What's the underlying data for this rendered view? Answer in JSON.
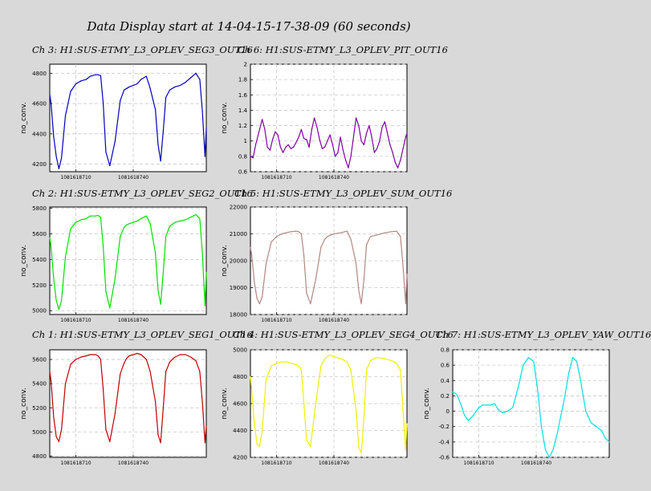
{
  "title": "Data Display start at 14-04-15-17-38-09 (60 seconds)",
  "chart_data": [
    {
      "type": "line",
      "title": "Ch 3: H1:SUS-ETMY_L3_OPLEV_SEG3_OUT16",
      "ylabel": "no_conv.",
      "color": "#0000c0",
      "ylim": [
        4150,
        4860
      ],
      "yticks": [
        4200,
        4400,
        4600,
        4800
      ],
      "yticklabels": [
        "4200",
        "4400",
        "4600",
        "4800"
      ],
      "xlim": [
        0,
        60
      ],
      "xticks": [
        10,
        32
      ],
      "xticklabels": [
        "1081618710",
        "1081618740"
      ],
      "x": [
        0,
        0.5,
        1.5,
        2.5,
        3.5,
        4.5,
        6,
        8,
        10,
        12,
        14,
        15.5,
        17.5,
        18.5,
        19.5,
        20.5,
        21.5,
        23,
        25,
        27,
        28.5,
        29.5,
        30.5,
        32,
        33.5,
        35,
        37,
        38.5,
        40.5,
        41.5,
        42.5,
        43.5,
        44.5,
        46,
        48,
        50,
        52,
        54,
        56,
        57.5,
        58.5,
        59.5,
        60
      ],
      "y": [
        4660,
        4600,
        4380,
        4250,
        4170,
        4240,
        4520,
        4680,
        4730,
        4750,
        4760,
        4780,
        4790,
        4790,
        4785,
        4600,
        4280,
        4190,
        4350,
        4620,
        4690,
        4700,
        4710,
        4720,
        4730,
        4760,
        4780,
        4700,
        4560,
        4330,
        4220,
        4420,
        4640,
        4690,
        4710,
        4720,
        4740,
        4770,
        4800,
        4760,
        4550,
        4250,
        4440
      ]
    },
    {
      "type": "line",
      "title": "Ch 6: H1:SUS-ETMY_L3_OPLEV_PIT_OUT16",
      "ylabel": "no_conv.",
      "color": "#8000a0",
      "ylim": [
        0.6,
        2.0
      ],
      "yticks": [
        0.6,
        0.8,
        1.0,
        1.2,
        1.4,
        1.6,
        1.8,
        2.0
      ],
      "yticklabels": [
        "0.6",
        "0.8",
        "1",
        "1.2",
        "1.4",
        "1.6",
        "1.8",
        "2"
      ],
      "xlim": [
        0,
        60
      ],
      "xticks": [
        10,
        32
      ],
      "xticklabels": [
        "1081618710",
        "1081618740"
      ],
      "x": [
        0,
        1,
        2,
        3.5,
        4.5,
        5.5,
        6.5,
        7.5,
        8.5,
        9.5,
        10.5,
        11.5,
        12.5,
        13.5,
        14.5,
        15.5,
        16.5,
        17.5,
        18.5,
        19.5,
        20.5,
        21.5,
        22.5,
        23.5,
        24.5,
        25.5,
        26.5,
        27.5,
        28.5,
        29.5,
        30.5,
        31.5,
        32.5,
        33.5,
        34.5,
        35.5,
        36.5,
        37.5,
        38.5,
        39.5,
        40.5,
        41.5,
        42.5,
        43.5,
        44.5,
        45.5,
        46.5,
        47.5,
        48.5,
        49.5,
        50.5,
        51.5,
        52.5,
        53.5,
        54.5,
        55.5,
        56.5,
        57.5,
        58.5,
        59.5,
        60
      ],
      "y": [
        0.8,
        0.78,
        0.95,
        1.15,
        1.28,
        1.15,
        0.92,
        0.88,
        1.02,
        1.12,
        1.08,
        0.92,
        0.85,
        0.92,
        0.95,
        0.9,
        0.92,
        0.98,
        1.05,
        1.15,
        1.03,
        1.02,
        0.92,
        1.15,
        1.3,
        1.18,
        1.02,
        0.9,
        0.92,
        1.0,
        1.08,
        0.95,
        0.8,
        0.85,
        1.05,
        0.88,
        0.75,
        0.65,
        0.8,
        1.05,
        1.3,
        1.2,
        1.0,
        0.95,
        1.1,
        1.2,
        1.05,
        0.85,
        0.9,
        1.0,
        1.18,
        1.25,
        1.1,
        0.95,
        0.85,
        0.72,
        0.65,
        0.75,
        0.9,
        1.05,
        1.1
      ]
    },
    {
      "type": "line",
      "title": "Ch 2: H1:SUS-ETMY_L3_OPLEV_SEG2_OUT16",
      "ylabel": "no_conv.",
      "color": "#00e000",
      "ylim": [
        4970,
        5810
      ],
      "yticks": [
        5000,
        5200,
        5400,
        5600,
        5800
      ],
      "yticklabels": [
        "5000",
        "5200",
        "5400",
        "5600",
        "5800"
      ],
      "xlim": [
        0,
        60
      ],
      "xticks": [
        10,
        32
      ],
      "xticklabels": [
        "1081618710",
        "1081618740"
      ],
      "x": [
        0,
        0.5,
        1.5,
        2.5,
        3.5,
        4.5,
        6,
        8,
        10,
        12,
        14,
        15.5,
        17.5,
        18.5,
        19.5,
        20.5,
        21.5,
        23,
        25,
        27,
        28.5,
        29.5,
        30.5,
        32,
        33.5,
        35,
        37,
        38.5,
        40.5,
        41.5,
        42.5,
        43.5,
        44.5,
        46,
        48,
        50,
        52,
        54,
        56,
        57.5,
        58.5,
        59.5,
        60
      ],
      "y": [
        5570,
        5500,
        5250,
        5080,
        5010,
        5080,
        5420,
        5640,
        5690,
        5710,
        5720,
        5740,
        5740,
        5745,
        5730,
        5500,
        5150,
        5020,
        5250,
        5580,
        5650,
        5670,
        5680,
        5690,
        5700,
        5720,
        5740,
        5680,
        5450,
        5160,
        5050,
        5300,
        5580,
        5660,
        5690,
        5700,
        5710,
        5730,
        5750,
        5720,
        5450,
        5040,
        5300
      ]
    },
    {
      "type": "line",
      "title": "Ch 5: H1:SUS-ETMY_L3_OPLEV_SUM_OUT16",
      "ylabel": "no_conv.",
      "color": "#b08880",
      "ylim": [
        18000,
        22000
      ],
      "yticks": [
        18000,
        19000,
        20000,
        21000,
        22000
      ],
      "yticklabels": [
        "18000",
        "19000",
        "20000",
        "21000",
        "22000"
      ],
      "xlim": [
        0,
        60
      ],
      "xticks": [
        10,
        32
      ],
      "xticklabels": [
        "1081618710",
        "1081618740"
      ],
      "x": [
        0,
        0.5,
        1.5,
        2.5,
        3.5,
        4.5,
        6,
        8,
        10,
        12,
        14,
        15.5,
        17.5,
        18.5,
        19.5,
        20.5,
        21.5,
        23,
        25,
        27,
        28.5,
        29.5,
        30.5,
        32,
        33.5,
        35,
        37,
        38.5,
        40.5,
        41.5,
        42.5,
        43.5,
        44.5,
        46,
        48,
        50,
        52,
        54,
        56,
        57.5,
        58.5,
        59.5,
        60
      ],
      "y": [
        20500,
        20200,
        19200,
        18600,
        18400,
        18650,
        19900,
        20700,
        20900,
        21000,
        21050,
        21080,
        21100,
        21080,
        21000,
        20200,
        18800,
        18400,
        19300,
        20500,
        20800,
        20900,
        20950,
        21000,
        21020,
        21050,
        21100,
        20800,
        19900,
        18900,
        18400,
        19300,
        20600,
        20900,
        20950,
        21000,
        21050,
        21080,
        21100,
        20900,
        19800,
        18400,
        19500
      ]
    },
    {
      "type": "line",
      "title": "Ch 1: H1:SUS-ETMY_L3_OPLEV_SEG1_OUT16",
      "ylabel": "no_conv.",
      "color": "#c00000",
      "ylim": [
        4790,
        5680
      ],
      "yticks": [
        4800,
        5000,
        5200,
        5400,
        5600
      ],
      "yticklabels": [
        "4800",
        "5000",
        "5200",
        "5400",
        "5600"
      ],
      "xlim": [
        0,
        60
      ],
      "xticks": [
        10,
        32
      ],
      "xticklabels": [
        "1081618710",
        "1081618740"
      ],
      "x": [
        0,
        0.5,
        1.5,
        2.5,
        3.5,
        4.5,
        6,
        8,
        10,
        12,
        14,
        15.5,
        17.5,
        18.5,
        19.5,
        20.5,
        21.5,
        23,
        25,
        27,
        28.5,
        29.5,
        30.5,
        32,
        33.5,
        35,
        37,
        38.5,
        40.5,
        41.5,
        42.5,
        43.5,
        44.5,
        46,
        48,
        50,
        52,
        54,
        56,
        57.5,
        58.5,
        59.5,
        60
      ],
      "y": [
        5500,
        5420,
        5120,
        4960,
        4920,
        5020,
        5400,
        5560,
        5600,
        5620,
        5630,
        5640,
        5640,
        5630,
        5600,
        5350,
        5020,
        4920,
        5150,
        5480,
        5570,
        5610,
        5630,
        5640,
        5650,
        5640,
        5600,
        5500,
        5250,
        4980,
        4910,
        5200,
        5500,
        5580,
        5620,
        5640,
        5640,
        5620,
        5590,
        5500,
        5250,
        4910,
        5050
      ]
    },
    {
      "type": "line",
      "title": "Ch 4: H1:SUS-ETMY_L3_OPLEV_SEG4_OUT16",
      "ylabel": "no_conv.",
      "color": "#f0f000",
      "ylim": [
        4200,
        5000
      ],
      "yticks": [
        4200,
        4400,
        4600,
        4800,
        5000
      ],
      "yticklabels": [
        "4200",
        "4400",
        "4600",
        "4800",
        "5000"
      ],
      "xlim": [
        0,
        60
      ],
      "xticks": [
        10,
        32
      ],
      "xticklabels": [
        "1081618710",
        "1081618740"
      ],
      "x": [
        0,
        0.5,
        1.5,
        2.5,
        3.5,
        4.5,
        6,
        8,
        10,
        12,
        14,
        15.5,
        17.5,
        18.5,
        19.5,
        20.5,
        21.5,
        23,
        25,
        27,
        28.5,
        29.5,
        30.5,
        32,
        33.5,
        35,
        37,
        38.5,
        40.5,
        41.5,
        42.5,
        43.5,
        44.5,
        46,
        48,
        50,
        52,
        54,
        56,
        57.5,
        58.5,
        59.5,
        60
      ],
      "y": [
        4800,
        4700,
        4450,
        4300,
        4280,
        4400,
        4780,
        4880,
        4900,
        4910,
        4910,
        4900,
        4890,
        4880,
        4850,
        4600,
        4330,
        4280,
        4600,
        4880,
        4930,
        4950,
        4960,
        4950,
        4940,
        4930,
        4910,
        4850,
        4550,
        4280,
        4230,
        4500,
        4850,
        4920,
        4940,
        4940,
        4930,
        4920,
        4900,
        4850,
        4550,
        4250,
        4450
      ]
    },
    {
      "type": "line",
      "title": "Ch 7: H1:SUS-ETMY_L3_OPLEV_YAW_OUT16",
      "ylabel": "no_conv.",
      "color": "#00e0e0",
      "ylim": [
        -0.6,
        0.8
      ],
      "yticks": [
        -0.6,
        -0.4,
        -0.2,
        0,
        0.2,
        0.4,
        0.6,
        0.8
      ],
      "yticklabels": [
        "-0.6",
        "-0.4",
        "-0.2",
        "0",
        "0.2",
        "0.4",
        "0.6",
        "0.8"
      ],
      "xlim": [
        0,
        60
      ],
      "xticks": [
        10,
        32
      ],
      "xticklabels": [
        "1081618710",
        "1081618740"
      ],
      "x": [
        0,
        1.5,
        3,
        4.5,
        6,
        8,
        10,
        11.5,
        13,
        14.5,
        16,
        17.5,
        19,
        21,
        23,
        25,
        27,
        29,
        31,
        32.5,
        34,
        35.5,
        37,
        38.5,
        40,
        41.5,
        43,
        44.5,
        46,
        47.5,
        49,
        51,
        53,
        55,
        57,
        58.5,
        60
      ],
      "y": [
        0.25,
        0.22,
        0.1,
        -0.05,
        -0.12,
        -0.05,
        0.05,
        0.08,
        0.08,
        0.08,
        0.1,
        0.02,
        -0.02,
        0.0,
        0.05,
        0.3,
        0.6,
        0.7,
        0.65,
        0.3,
        -0.2,
        -0.5,
        -0.6,
        -0.5,
        -0.3,
        -0.05,
        0.2,
        0.5,
        0.7,
        0.65,
        0.4,
        0.0,
        -0.15,
        -0.2,
        -0.25,
        -0.35,
        -0.4
      ]
    }
  ]
}
